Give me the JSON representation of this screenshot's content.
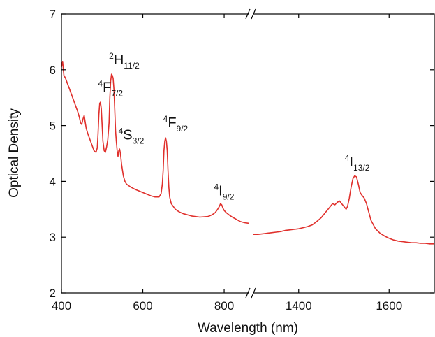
{
  "chart_data": {
    "type": "line",
    "title": "",
    "xlabel": "Wavelength (nm)",
    "ylabel": "Optical Density",
    "ylim": [
      2,
      7
    ],
    "y_ticks": [
      "2",
      "3",
      "4",
      "5",
      "6",
      "7"
    ],
    "broken_x_axis": true,
    "segments": [
      {
        "xlim": [
          400,
          860
        ],
        "x_ticks": [
          {
            "value": 400,
            "label": "400"
          },
          {
            "value": 600,
            "label": "600"
          },
          {
            "value": 800,
            "label": "800"
          }
        ],
        "points": [
          [
            400,
            6.05
          ],
          [
            403,
            6.15
          ],
          [
            406,
            5.9
          ],
          [
            410,
            5.85
          ],
          [
            415,
            5.75
          ],
          [
            420,
            5.65
          ],
          [
            425,
            5.55
          ],
          [
            430,
            5.45
          ],
          [
            435,
            5.35
          ],
          [
            440,
            5.25
          ],
          [
            444,
            5.15
          ],
          [
            447,
            5.05
          ],
          [
            450,
            5.02
          ],
          [
            453,
            5.12
          ],
          [
            456,
            5.18
          ],
          [
            458,
            5.08
          ],
          [
            461,
            4.95
          ],
          [
            465,
            4.85
          ],
          [
            470,
            4.75
          ],
          [
            475,
            4.65
          ],
          [
            480,
            4.55
          ],
          [
            485,
            4.52
          ],
          [
            488,
            4.6
          ],
          [
            490,
            4.85
          ],
          [
            492,
            5.2
          ],
          [
            494,
            5.4
          ],
          [
            496,
            5.42
          ],
          [
            498,
            5.3
          ],
          [
            500,
            5.0
          ],
          [
            502,
            4.72
          ],
          [
            505,
            4.55
          ],
          [
            508,
            4.52
          ],
          [
            511,
            4.62
          ],
          [
            514,
            4.75
          ],
          [
            517,
            5.05
          ],
          [
            519,
            5.5
          ],
          [
            521,
            5.8
          ],
          [
            523,
            5.92
          ],
          [
            525,
            5.9
          ],
          [
            527,
            5.85
          ],
          [
            529,
            5.65
          ],
          [
            531,
            5.3
          ],
          [
            533,
            4.9
          ],
          [
            535,
            4.7
          ],
          [
            537,
            4.55
          ],
          [
            539,
            4.45
          ],
          [
            541,
            4.55
          ],
          [
            543,
            4.58
          ],
          [
            545,
            4.5
          ],
          [
            548,
            4.3
          ],
          [
            552,
            4.1
          ],
          [
            556,
            4.0
          ],
          [
            560,
            3.95
          ],
          [
            570,
            3.9
          ],
          [
            580,
            3.86
          ],
          [
            590,
            3.83
          ],
          [
            600,
            3.8
          ],
          [
            610,
            3.77
          ],
          [
            620,
            3.74
          ],
          [
            630,
            3.72
          ],
          [
            640,
            3.72
          ],
          [
            645,
            3.78
          ],
          [
            648,
            3.95
          ],
          [
            650,
            4.2
          ],
          [
            652,
            4.55
          ],
          [
            654,
            4.72
          ],
          [
            656,
            4.78
          ],
          [
            658,
            4.72
          ],
          [
            660,
            4.55
          ],
          [
            662,
            4.2
          ],
          [
            664,
            3.9
          ],
          [
            666,
            3.72
          ],
          [
            670,
            3.6
          ],
          [
            680,
            3.5
          ],
          [
            690,
            3.45
          ],
          [
            700,
            3.42
          ],
          [
            720,
            3.38
          ],
          [
            740,
            3.36
          ],
          [
            760,
            3.37
          ],
          [
            770,
            3.4
          ],
          [
            778,
            3.44
          ],
          [
            784,
            3.5
          ],
          [
            788,
            3.55
          ],
          [
            791,
            3.6
          ],
          [
            794,
            3.58
          ],
          [
            797,
            3.52
          ],
          [
            800,
            3.48
          ],
          [
            805,
            3.44
          ],
          [
            812,
            3.4
          ],
          [
            820,
            3.36
          ],
          [
            830,
            3.32
          ],
          [
            840,
            3.28
          ],
          [
            850,
            3.26
          ],
          [
            860,
            3.25
          ]
        ]
      },
      {
        "xlim": [
          1300,
          1700
        ],
        "x_ticks": [
          {
            "value": 1400,
            "label": "1400"
          },
          {
            "value": 1600,
            "label": "1600"
          }
        ],
        "points": [
          [
            1300,
            3.05
          ],
          [
            1310,
            3.05
          ],
          [
            1320,
            3.06
          ],
          [
            1330,
            3.07
          ],
          [
            1340,
            3.08
          ],
          [
            1350,
            3.09
          ],
          [
            1360,
            3.1
          ],
          [
            1370,
            3.12
          ],
          [
            1380,
            3.13
          ],
          [
            1390,
            3.14
          ],
          [
            1400,
            3.15
          ],
          [
            1410,
            3.17
          ],
          [
            1420,
            3.19
          ],
          [
            1430,
            3.22
          ],
          [
            1440,
            3.28
          ],
          [
            1450,
            3.35
          ],
          [
            1460,
            3.45
          ],
          [
            1470,
            3.55
          ],
          [
            1475,
            3.6
          ],
          [
            1480,
            3.58
          ],
          [
            1485,
            3.62
          ],
          [
            1490,
            3.65
          ],
          [
            1495,
            3.6
          ],
          [
            1500,
            3.55
          ],
          [
            1505,
            3.5
          ],
          [
            1508,
            3.55
          ],
          [
            1512,
            3.7
          ],
          [
            1516,
            3.9
          ],
          [
            1520,
            4.05
          ],
          [
            1524,
            4.1
          ],
          [
            1528,
            4.08
          ],
          [
            1532,
            3.95
          ],
          [
            1536,
            3.8
          ],
          [
            1540,
            3.75
          ],
          [
            1545,
            3.7
          ],
          [
            1550,
            3.6
          ],
          [
            1555,
            3.45
          ],
          [
            1560,
            3.3
          ],
          [
            1570,
            3.15
          ],
          [
            1580,
            3.07
          ],
          [
            1590,
            3.02
          ],
          [
            1600,
            2.98
          ],
          [
            1610,
            2.95
          ],
          [
            1620,
            2.93
          ],
          [
            1630,
            2.92
          ],
          [
            1640,
            2.91
          ],
          [
            1650,
            2.9
          ],
          [
            1660,
            2.9
          ],
          [
            1670,
            2.89
          ],
          [
            1680,
            2.89
          ],
          [
            1690,
            2.88
          ],
          [
            1700,
            2.88
          ]
        ]
      }
    ],
    "annotations": [
      {
        "id": "4F72",
        "sup": "4",
        "main": "F",
        "sub": "7/2",
        "seg": 0,
        "x": 490,
        "y": 5.6
      },
      {
        "id": "2H112",
        "sup": "2",
        "main": "H",
        "sub": "11/2",
        "seg": 0,
        "x": 517,
        "y": 6.1
      },
      {
        "id": "4S32",
        "sup": "4",
        "main": "S",
        "sub": "3/2",
        "seg": 0,
        "x": 540,
        "y": 4.75
      },
      {
        "id": "4F92",
        "sup": "4",
        "main": "F",
        "sub": "9/2",
        "seg": 0,
        "x": 650,
        "y": 4.97
      },
      {
        "id": "4I92",
        "sup": "4",
        "main": "I",
        "sub": "9/2",
        "seg": 0,
        "x": 775,
        "y": 3.75
      },
      {
        "id": "4I132",
        "sup": "4",
        "main": "I",
        "sub": "13/2",
        "seg": 1,
        "x": 1502,
        "y": 4.27
      }
    ]
  },
  "colors": {
    "series": "#e0302c",
    "axis": "#000000"
  }
}
